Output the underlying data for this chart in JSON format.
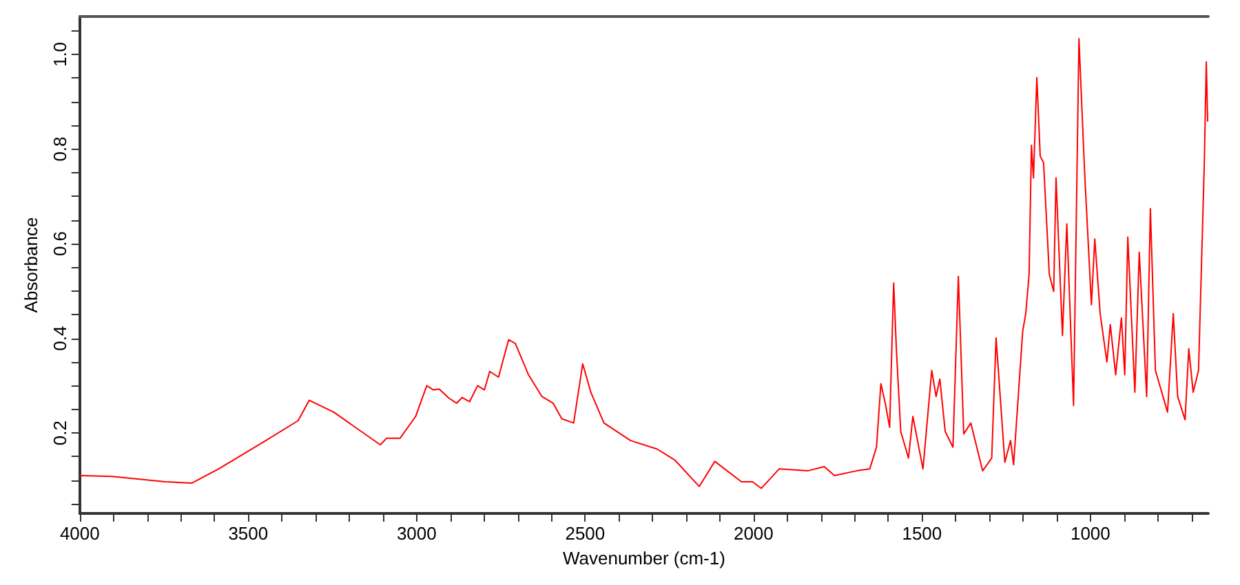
{
  "chart_data": {
    "type": "line",
    "xlabel": "Wavenumber (cm-1)",
    "ylabel": "Absorbance",
    "xlim": [
      4000,
      650
    ],
    "ylim": [
      0.03,
      1.08
    ],
    "xticks": [
      4000,
      {
        "value": 3900,
        "label": null
      },
      {
        "value": 3800,
        "label": null
      },
      {
        "value": 3700,
        "label": null
      },
      {
        "value": 3600,
        "label": null
      },
      3500,
      {
        "value": 3400,
        "label": null
      },
      {
        "value": 3300,
        "label": null
      },
      {
        "value": 3200,
        "label": null
      },
      {
        "value": 3100,
        "label": null
      },
      3000,
      {
        "value": 2900,
        "label": null
      },
      {
        "value": 2800,
        "label": null
      },
      {
        "value": 2700,
        "label": null
      },
      {
        "value": 2600,
        "label": null
      },
      2500,
      {
        "value": 2400,
        "label": null
      },
      {
        "value": 2300,
        "label": null
      },
      {
        "value": 2200,
        "label": null
      },
      {
        "value": 2100,
        "label": null
      },
      2000,
      {
        "value": 1900,
        "label": null
      },
      {
        "value": 1800,
        "label": null
      },
      {
        "value": 1700,
        "label": null
      },
      {
        "value": 1600,
        "label": null
      },
      1500,
      {
        "value": 1400,
        "label": null
      },
      {
        "value": 1300,
        "label": null
      },
      {
        "value": 1200,
        "label": null
      },
      {
        "value": 1100,
        "label": null
      },
      1000,
      {
        "value": 900,
        "label": null
      },
      {
        "value": 800,
        "label": null
      },
      {
        "value": 700,
        "label": null
      }
    ],
    "yticks": [
      {
        "value": 0.05,
        "label": null
      },
      {
        "value": 0.1,
        "label": null
      },
      {
        "value": 0.15,
        "label": null
      },
      {
        "value": 0.2,
        "label": "0.2"
      },
      {
        "value": 0.25,
        "label": null
      },
      {
        "value": 0.3,
        "label": null
      },
      {
        "value": 0.35,
        "label": null
      },
      {
        "value": 0.4,
        "label": "0.4"
      },
      {
        "value": 0.45,
        "label": null
      },
      {
        "value": 0.5,
        "label": null
      },
      {
        "value": 0.55,
        "label": null
      },
      {
        "value": 0.6,
        "label": "0.6"
      },
      {
        "value": 0.65,
        "label": null
      },
      {
        "value": 0.7,
        "label": null
      },
      {
        "value": 0.75,
        "label": null
      },
      {
        "value": 0.8,
        "label": "0.8"
      },
      {
        "value": 0.85,
        "label": null
      },
      {
        "value": 0.9,
        "label": null
      },
      {
        "value": 0.95,
        "label": null
      },
      {
        "value": 1.0,
        "label": "1.0"
      },
      {
        "value": 1.05,
        "label": null
      }
    ],
    "grid": false,
    "marker": "none",
    "line_style": "solid",
    "series": [
      {
        "color": "#ff0000",
        "x": [
          4000,
          3904,
          3746,
          3667,
          3588,
          3457,
          3352,
          3319,
          3246,
          3154,
          3108,
          3089,
          3049,
          3003,
          2970,
          2950,
          2933,
          2905,
          2881,
          2865,
          2843,
          2819,
          2799,
          2783,
          2757,
          2727,
          2707,
          2668,
          2628,
          2595,
          2569,
          2534,
          2507,
          2483,
          2444,
          2365,
          2286,
          2234,
          2161,
          2115,
          2036,
          2003,
          1977,
          1924,
          1839,
          1790,
          1760,
          1694,
          1655,
          1635,
          1622,
          1609,
          1596,
          1584,
          1576,
          1563,
          1540,
          1527,
          1497,
          1471,
          1458,
          1447,
          1431,
          1408,
          1392,
          1376,
          1355,
          1320,
          1293,
          1280,
          1254,
          1237,
          1228,
          1201,
          1192,
          1182,
          1175,
          1169,
          1159,
          1149,
          1139,
          1122,
          1109,
          1102,
          1083,
          1070,
          1050,
          1034,
          1017,
          997,
          987,
          971,
          951,
          941,
          925,
          908,
          898,
          889,
          868,
          855,
          833,
          822,
          807,
          771,
          754,
          741,
          719,
          708,
          695,
          679,
          662,
          656,
          652
        ],
        "values": [
          0.11,
          0.108,
          0.097,
          0.094,
          0.124,
          0.18,
          0.226,
          0.269,
          0.244,
          0.198,
          0.175,
          0.189,
          0.189,
          0.235,
          0.3,
          0.291,
          0.293,
          0.274,
          0.263,
          0.275,
          0.266,
          0.3,
          0.291,
          0.33,
          0.318,
          0.397,
          0.389,
          0.323,
          0.277,
          0.263,
          0.23,
          0.221,
          0.346,
          0.286,
          0.221,
          0.184,
          0.166,
          0.143,
          0.087,
          0.14,
          0.097,
          0.097,
          0.083,
          0.124,
          0.12,
          0.129,
          0.11,
          0.12,
          0.124,
          0.17,
          0.304,
          0.263,
          0.212,
          0.517,
          0.378,
          0.203,
          0.147,
          0.235,
          0.124,
          0.332,
          0.277,
          0.314,
          0.203,
          0.17,
          0.531,
          0.198,
          0.221,
          0.12,
          0.147,
          0.401,
          0.138,
          0.184,
          0.133,
          0.415,
          0.452,
          0.535,
          0.808,
          0.739,
          0.951,
          0.785,
          0.771,
          0.535,
          0.499,
          0.739,
          0.406,
          0.642,
          0.258,
          1.033,
          0.748,
          0.471,
          0.61,
          0.452,
          0.35,
          0.429,
          0.323,
          0.443,
          0.323,
          0.614,
          0.286,
          0.582,
          0.277,
          0.674,
          0.332,
          0.244,
          0.452,
          0.277,
          0.228,
          0.378,
          0.286,
          0.332,
          0.767,
          0.984,
          0.859
        ]
      }
    ]
  }
}
